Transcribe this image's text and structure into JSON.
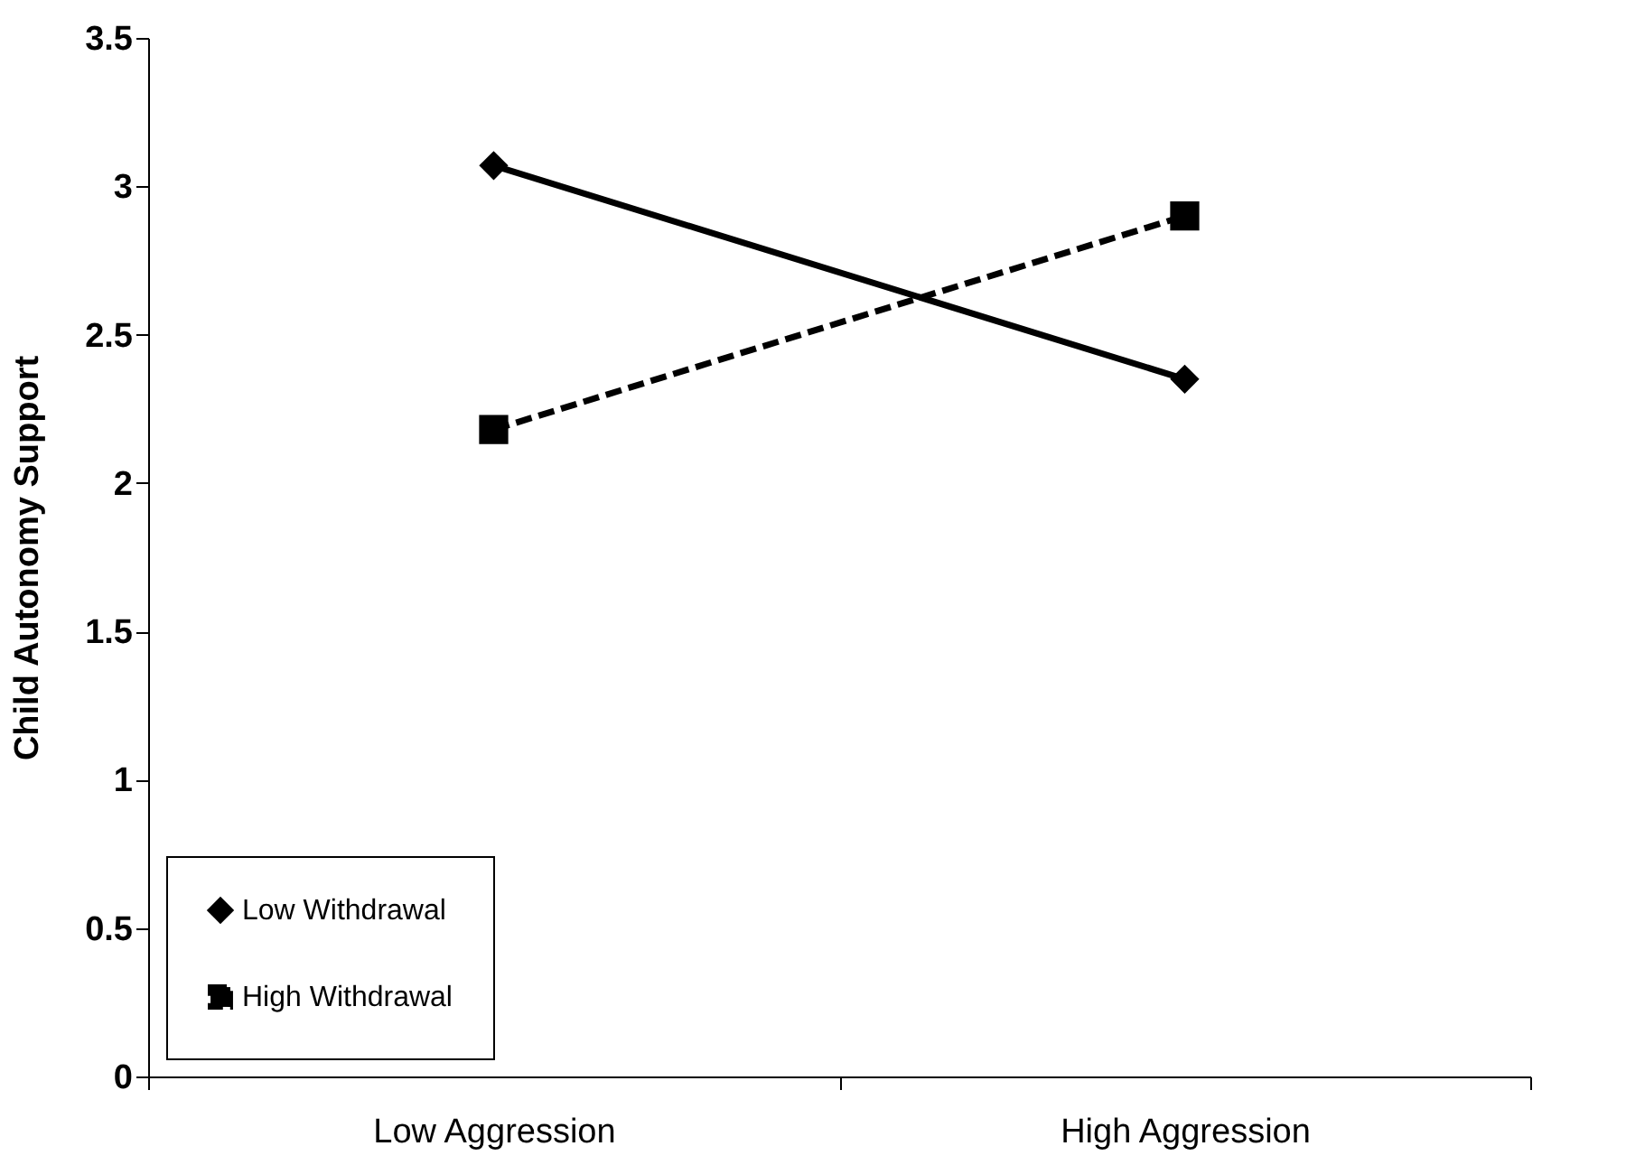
{
  "chart_data": {
    "type": "line",
    "ylabel": "Child Autonomy Support",
    "categories": [
      "Low Aggression",
      "High Aggression"
    ],
    "series": [
      {
        "name": "Low Withdrawal",
        "color": "#000000",
        "values": [
          3.07,
          2.35
        ],
        "marker": "diamond",
        "line_style": "solid"
      },
      {
        "name": "High Withdrawal",
        "color": "#000000",
        "values": [
          2.18,
          2.9
        ],
        "marker": "square",
        "line_style": "dashed"
      }
    ],
    "ylim": [
      0,
      3.5
    ],
    "yticks": [
      0,
      0.5,
      1,
      1.5,
      2,
      2.5,
      3,
      3.5
    ],
    "grid": false,
    "legend": "bottom left"
  }
}
